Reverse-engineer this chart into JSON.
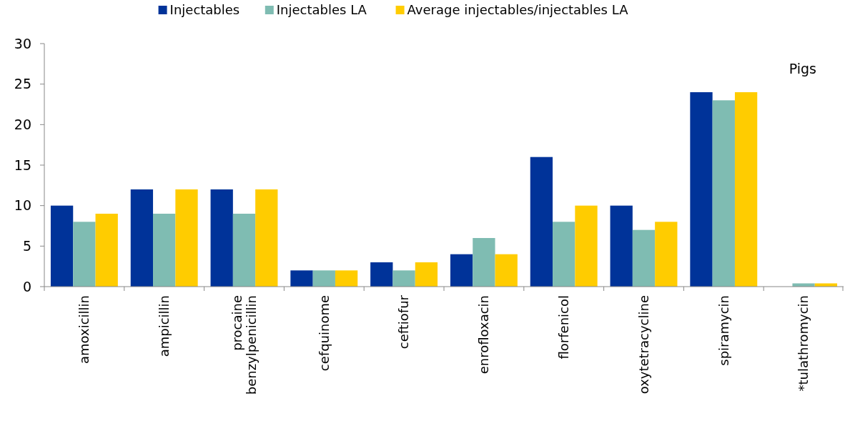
{
  "chart_data": {
    "type": "bar",
    "categories": [
      "amoxicillin",
      "ampicillin",
      "procaine\nbenzylpenicillin",
      "cefquinome",
      "ceftiofur",
      "enrofloxacin",
      "florfenicol",
      "oxytetracycline",
      "spiramycin",
      "*tulathromycin"
    ],
    "series": [
      {
        "name": "Injectables",
        "color": "#003399",
        "values": [
          10,
          12,
          12,
          2,
          3,
          4,
          16,
          10,
          24,
          null
        ]
      },
      {
        "name": "Injectables LA",
        "color": "#7fbcb2",
        "values": [
          8,
          9,
          9,
          2,
          2,
          6,
          8,
          7,
          23,
          0.4
        ]
      },
      {
        "name": "Average injectables/injectables LA",
        "color": "#ffcc00",
        "values": [
          9,
          12,
          12,
          2,
          3,
          4,
          10,
          8,
          24,
          0.4
        ]
      }
    ],
    "ylim": [
      0,
      30
    ],
    "yticks": [
      0,
      5,
      10,
      15,
      20,
      25,
      30
    ],
    "legend": "top",
    "grid": false,
    "annotations": [
      "Pigs"
    ]
  }
}
